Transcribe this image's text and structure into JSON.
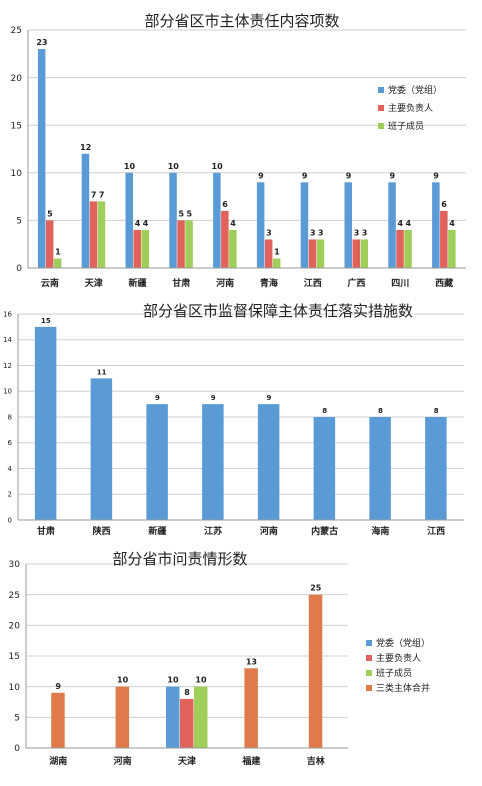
{
  "colors": {
    "blue": "#5b9bd5",
    "red": "#e0625a",
    "green": "#9fcf5a",
    "orange": "#e07a4a",
    "grid": "#d0d0d0",
    "text": "#222222"
  },
  "chart_data": [
    {
      "type": "bar",
      "title": "部分省区市主体责任内容项数",
      "categories": [
        "云南",
        "天津",
        "新疆",
        "甘肃",
        "河南",
        "青海",
        "江西",
        "广西",
        "四川",
        "西藏"
      ],
      "series": [
        {
          "name": "党委（党组）",
          "color": "#5b9bd5",
          "values": [
            23,
            12,
            10,
            10,
            10,
            9,
            9,
            9,
            9,
            9
          ]
        },
        {
          "name": "主要负责人",
          "color": "#e0625a",
          "values": [
            5,
            7,
            4,
            5,
            6,
            3,
            3,
            3,
            4,
            6
          ]
        },
        {
          "name": "班子成员",
          "color": "#9fcf5a",
          "values": [
            1,
            7,
            4,
            5,
            4,
            1,
            3,
            3,
            4,
            4
          ]
        }
      ],
      "ylim": [
        0,
        25
      ],
      "yticks": [
        0,
        5,
        10,
        15,
        20,
        25
      ],
      "grid": true,
      "legend": "right"
    },
    {
      "type": "bar",
      "title": "部分省区市监督保障主体责任落实措施数",
      "categories": [
        "甘肃",
        "陕西",
        "新疆",
        "江苏",
        "河南",
        "内蒙古",
        "海南",
        "江西"
      ],
      "series": [
        {
          "color": "#5b9bd5",
          "values": [
            15,
            11,
            9,
            9,
            9,
            8,
            8,
            8
          ]
        }
      ],
      "ylim": [
        0,
        16
      ],
      "yticks": [
        0,
        2,
        4,
        6,
        8,
        10,
        12,
        14,
        16
      ],
      "grid": true
    },
    {
      "type": "bar",
      "title": "部分省市问责情形数",
      "categories": [
        "湖南",
        "河南",
        "天津",
        "福建",
        "吉林"
      ],
      "series": [
        {
          "name": "党委（党组）",
          "color": "#5b9bd5",
          "values": [
            null,
            null,
            10,
            null,
            null
          ]
        },
        {
          "name": "主要负责人",
          "color": "#e0625a",
          "values": [
            null,
            null,
            8,
            null,
            null
          ]
        },
        {
          "name": "班子成员",
          "color": "#9fcf5a",
          "values": [
            null,
            null,
            10,
            null,
            null
          ]
        },
        {
          "name": "三类主体合并",
          "color": "#e07a4a",
          "values": [
            9,
            10,
            null,
            13,
            25
          ]
        }
      ],
      "ylim": [
        0,
        30
      ],
      "yticks": [
        0,
        5,
        10,
        15,
        20,
        25,
        30
      ],
      "grid": true,
      "legend": "right"
    }
  ]
}
